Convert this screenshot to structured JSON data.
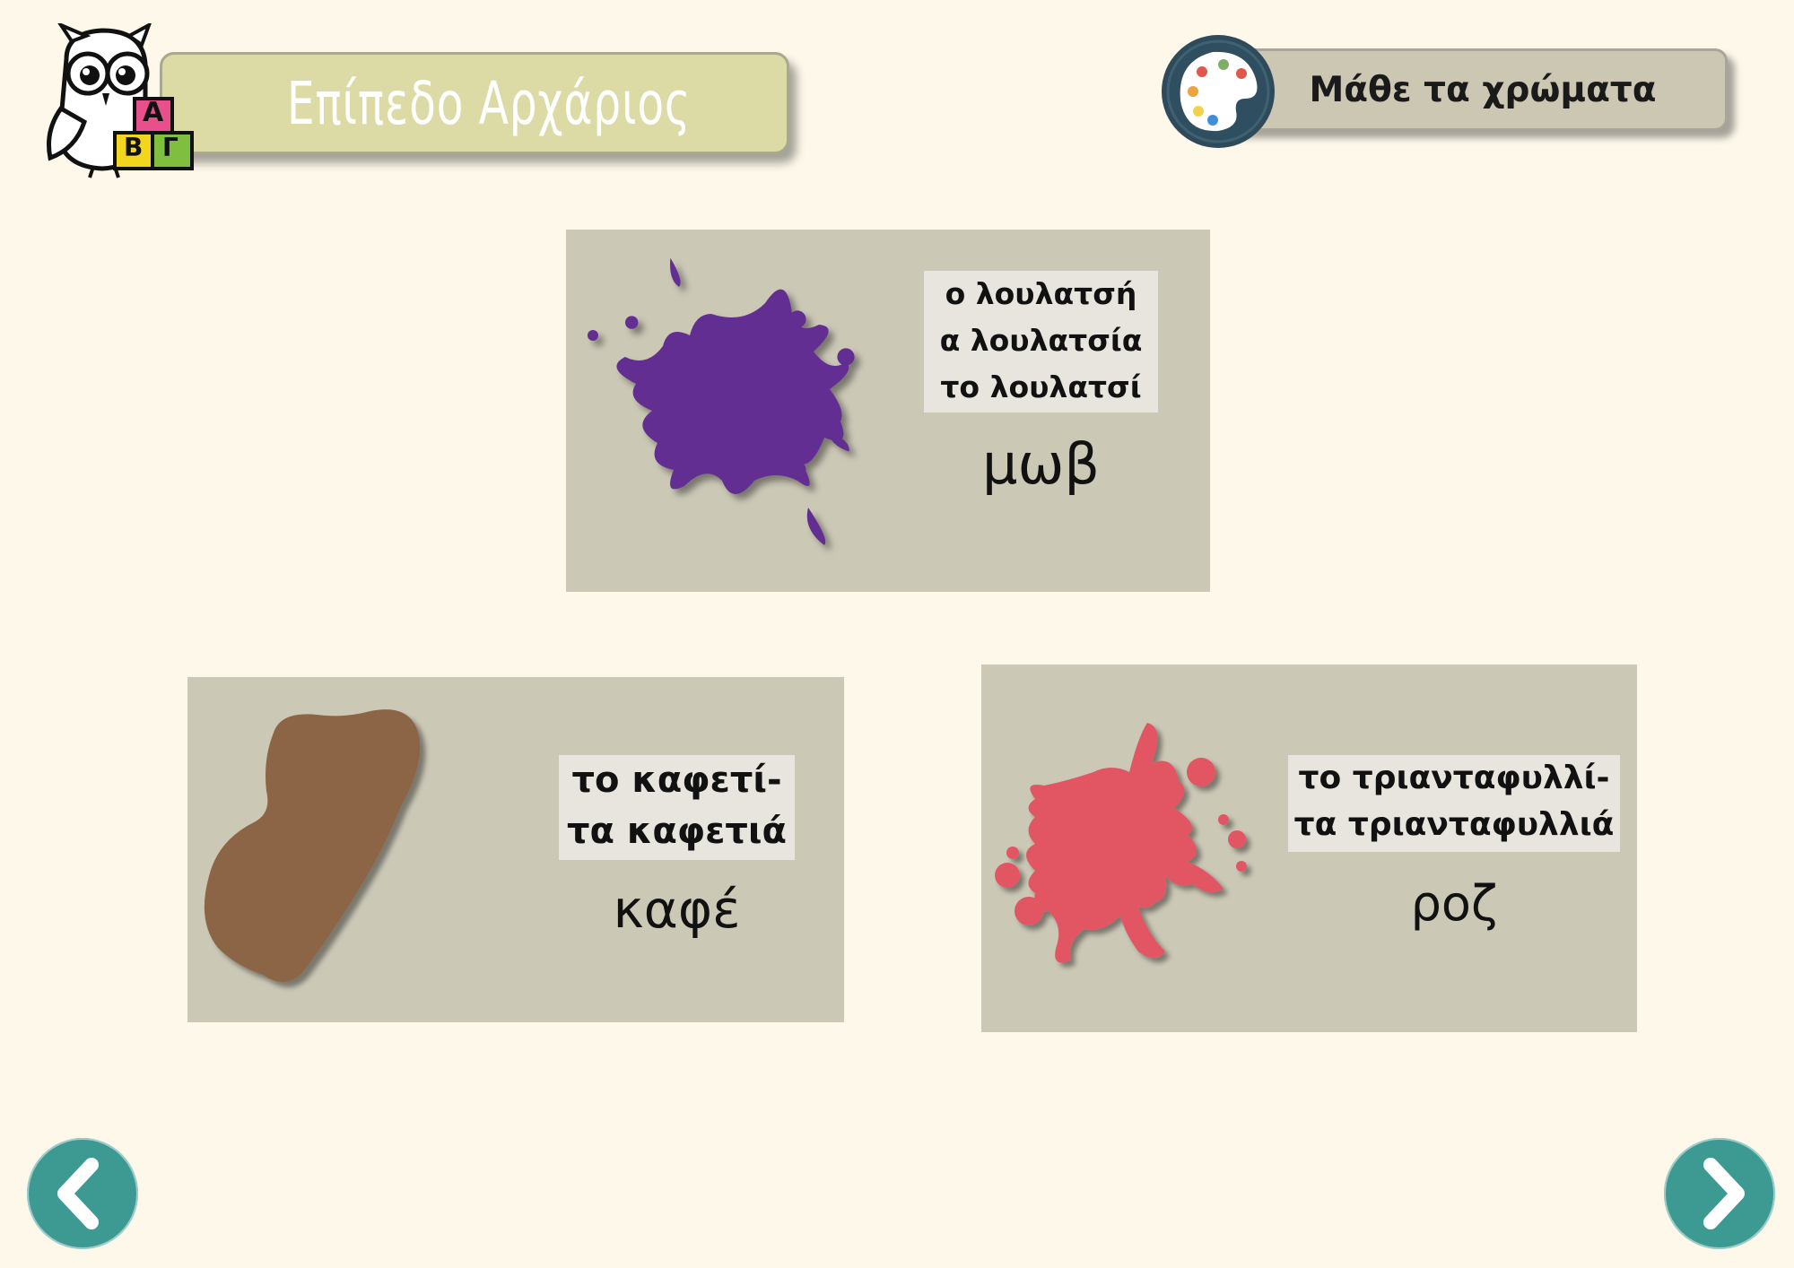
{
  "header": {
    "level_title": "Επίπεδο Αρχάριος",
    "logo_blocks": [
      "Α",
      "Β",
      "Γ"
    ],
    "learn_button_label": "Μάθε τα χρώματα"
  },
  "cards": [
    {
      "forms": [
        "ο λουλατσή",
        "α λουλατσία",
        "το λουλατσί"
      ],
      "word": "μωβ",
      "color": "#622d91"
    },
    {
      "forms": [
        "το καφετί-",
        "τα καφετιά"
      ],
      "word": "καφέ",
      "color": "#8b6545"
    },
    {
      "forms": [
        "το τριανταφυλλί-",
        "τα τριανταφυλλιά"
      ],
      "word": "ροζ",
      "color": "#e15762"
    }
  ],
  "nav": {
    "prev_icon": "chevron-left-icon",
    "next_icon": "chevron-right-icon"
  }
}
